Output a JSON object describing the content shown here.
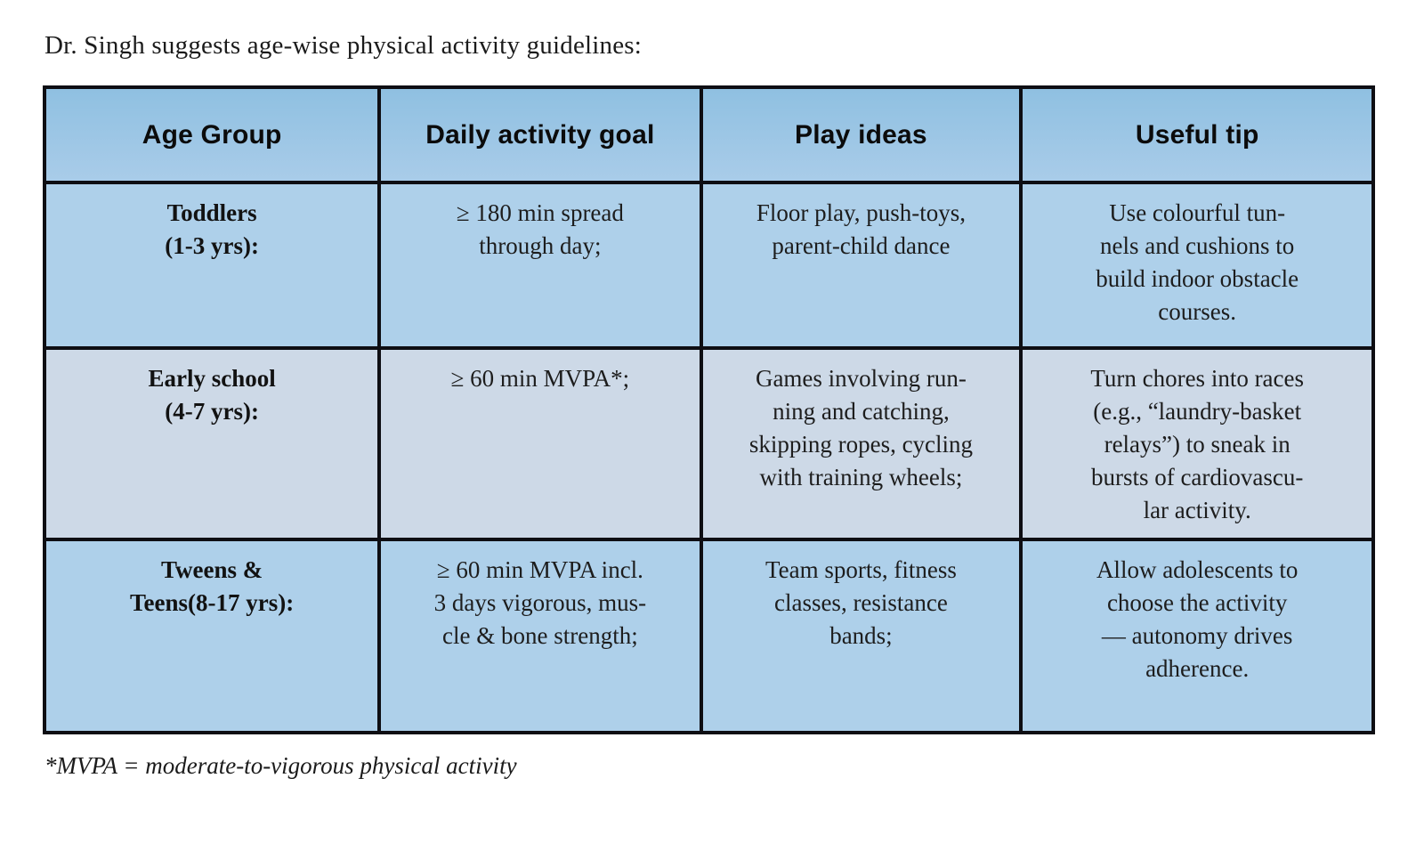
{
  "page": {
    "title": "Dr. Singh suggests age-wise physical activity guidelines:",
    "footnote": "*MVPA = moderate-to-vigorous physical activity"
  },
  "table": {
    "headers": [
      "Age Group",
      "Daily activity goal",
      "Play ideas",
      "Useful tip"
    ],
    "rows": [
      {
        "age_group": "Toddlers\n(1-3 yrs):",
        "daily_goal": "≥ 180 min spread\nthrough day;",
        "play_ideas": "Floor play, push-toys,\nparent-child dance",
        "useful_tip": "Use colourful tun-\nnels and cushions to\nbuild indoor obstacle\ncourses."
      },
      {
        "age_group": "Early school\n(4-7 yrs):",
        "daily_goal": "≥ 60 min MVPA*;",
        "play_ideas": "Games involving run-\nning and catching,\nskipping ropes, cycling\nwith training wheels;",
        "useful_tip": "Turn chores into races\n(e.g., “laundry-basket\nrelays”) to sneak in\nbursts of cardiovascu-\nlar activity."
      },
      {
        "age_group": "Tweens &\nTeens(8-17 yrs):",
        "daily_goal": "≥ 60 min MVPA incl.\n3 days vigorous, mus-\ncle & bone strength;",
        "play_ideas": "Team sports, fitness\nclasses, resistance\nbands;",
        "useful_tip": "Allow adolescents to\nchoose the activity\n— autonomy drives\nadherence."
      }
    ]
  },
  "colors": {
    "header_bg_top": "#8fc0e1",
    "header_bg_bottom": "#a9cce9",
    "row_bg": "#aed0ea",
    "row_alt_bg": "#cdd9e7",
    "border": "#0e0e13",
    "text": "#1d1d1d"
  }
}
